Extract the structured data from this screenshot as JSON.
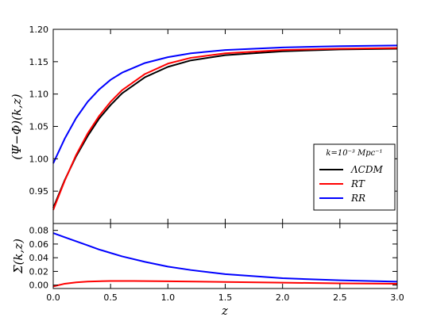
{
  "chart_data": [
    {
      "type": "line",
      "panel": "top",
      "xlabel": "",
      "ylabel": "(Ψ−Φ)(k,z)",
      "xlim": [
        0.0,
        3.0
      ],
      "ylim": [
        0.9,
        1.2
      ],
      "yticks": [
        "0.95",
        "1.00",
        "1.05",
        "1.10",
        "1.15",
        "1.20"
      ],
      "legend": {
        "title": "k=10⁻³ Mpc⁻¹",
        "placement": "lower-right",
        "entries": [
          "ΛCDM",
          "RT",
          "RR"
        ]
      },
      "series": [
        {
          "name": "ΛCDM",
          "color": "#000000",
          "x": [
            0.0,
            0.1,
            0.2,
            0.3,
            0.4,
            0.5,
            0.6,
            0.8,
            1.0,
            1.2,
            1.5,
            2.0,
            2.5,
            3.0
          ],
          "values": [
            0.924,
            0.967,
            1.004,
            1.035,
            1.062,
            1.083,
            1.101,
            1.126,
            1.142,
            1.152,
            1.16,
            1.166,
            1.169,
            1.17
          ]
        },
        {
          "name": "RT",
          "color": "#ff0000",
          "x": [
            0.0,
            0.1,
            0.2,
            0.3,
            0.4,
            0.5,
            0.6,
            0.8,
            1.0,
            1.2,
            1.5,
            2.0,
            2.5,
            3.0
          ],
          "values": [
            0.921,
            0.966,
            1.006,
            1.039,
            1.066,
            1.088,
            1.106,
            1.131,
            1.147,
            1.156,
            1.163,
            1.168,
            1.17,
            1.171
          ]
        },
        {
          "name": "RR",
          "color": "#0000ff",
          "x": [
            0.0,
            0.1,
            0.2,
            0.3,
            0.4,
            0.5,
            0.6,
            0.8,
            1.0,
            1.2,
            1.5,
            2.0,
            2.5,
            3.0
          ],
          "values": [
            0.993,
            1.031,
            1.063,
            1.088,
            1.107,
            1.122,
            1.133,
            1.148,
            1.157,
            1.163,
            1.168,
            1.172,
            1.174,
            1.175
          ]
        }
      ]
    },
    {
      "type": "line",
      "panel": "bottom",
      "xlabel": "z",
      "ylabel": "Σ(k,z)",
      "xlim": [
        0.0,
        3.0
      ],
      "ylim": [
        -0.005,
        0.09
      ],
      "xticks": [
        "0.0",
        "0.5",
        "1.0",
        "1.5",
        "2.0",
        "2.5",
        "3.0"
      ],
      "yticks": [
        "0.00",
        "0.02",
        "0.04",
        "0.06",
        "0.08"
      ],
      "series": [
        {
          "name": "RT",
          "color": "#ff0000",
          "x": [
            0.0,
            0.1,
            0.2,
            0.3,
            0.5,
            0.7,
            1.0,
            1.5,
            2.0,
            2.5,
            3.0
          ],
          "values": [
            -0.002,
            0.002,
            0.004,
            0.0052,
            0.006,
            0.006,
            0.0056,
            0.0045,
            0.0035,
            0.0026,
            0.002
          ]
        },
        {
          "name": "RR",
          "color": "#0000ff",
          "x": [
            0.0,
            0.1,
            0.2,
            0.3,
            0.4,
            0.5,
            0.6,
            0.8,
            1.0,
            1.2,
            1.5,
            2.0,
            2.5,
            3.0
          ],
          "values": [
            0.076,
            0.07,
            0.064,
            0.058,
            0.052,
            0.047,
            0.042,
            0.034,
            0.027,
            0.022,
            0.016,
            0.01,
            0.007,
            0.005
          ]
        }
      ]
    }
  ]
}
